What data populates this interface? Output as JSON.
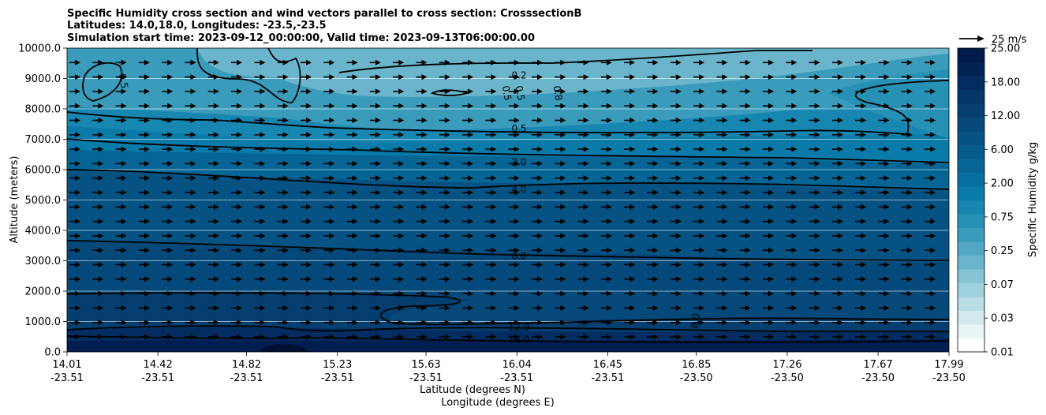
{
  "chart_data": {
    "type": "contour",
    "title_lines": [
      "Specific Humidity cross section and wind vectors parallel to cross section: CrosssectionB",
      "Latitudes: 14.0,18.0, Longitudes: -23.5,-23.5",
      "Simulation start time: 2023-09-12_00:00:00, Valid time: 2023-09-13T06:00:00.00"
    ],
    "ylabel": "Altitude (meters)",
    "xlabel_lat": "Latitude (degrees N)",
    "xlabel_lon": "Longitude (degrees E)",
    "ylim": [
      0,
      10000
    ],
    "y_ticks": [
      "0.0",
      "1000.0",
      "2000.0",
      "3000.0",
      "4000.0",
      "5000.0",
      "6000.0",
      "7000.0",
      "8000.0",
      "9000.0",
      "10000.0"
    ],
    "y_tick_values": [
      0,
      1000,
      2000,
      3000,
      4000,
      5000,
      6000,
      7000,
      8000,
      9000,
      10000
    ],
    "xlim": [
      14.01,
      17.99
    ],
    "x_ticks": [
      {
        "lat": "14.01",
        "lon": "-23.51",
        "value": 14.01
      },
      {
        "lat": "14.42",
        "lon": "-23.51",
        "value": 14.42
      },
      {
        "lat": "14.82",
        "lon": "-23.51",
        "value": 14.82
      },
      {
        "lat": "15.23",
        "lon": "-23.51",
        "value": 15.23
      },
      {
        "lat": "15.63",
        "lon": "-23.51",
        "value": 15.63
      },
      {
        "lat": "16.04",
        "lon": "-23.51",
        "value": 16.04
      },
      {
        "lat": "16.45",
        "lon": "-23.51",
        "value": 16.45
      },
      {
        "lat": "16.85",
        "lon": "-23.50",
        "value": 16.85
      },
      {
        "lat": "17.26",
        "lon": "-23.50",
        "value": 17.26
      },
      {
        "lat": "17.67",
        "lon": "-23.50",
        "value": 17.67
      },
      {
        "lat": "17.99",
        "lon": "-23.50",
        "value": 17.99
      }
    ],
    "colorbar": {
      "label": "Specific Humidity g/kg",
      "tick_labels": [
        "0.01",
        "0.03",
        "0.07",
        "0.25",
        "0.75",
        "2.00",
        "6.00",
        "12.00",
        "18.00",
        "25.00"
      ],
      "colors": [
        "#ffffff",
        "#e8f4f6",
        "#d2e9ee",
        "#b9dde6",
        "#9fd0de",
        "#85c3d5",
        "#6ab5cc",
        "#52a8c4",
        "#3a9bbb",
        "#2690b5",
        "#1786b0",
        "#0a7ba9",
        "#066fa0",
        "#066595",
        "#055b8b",
        "#055283",
        "#05497a",
        "#053f70",
        "#043667",
        "#042c5e",
        "#032355",
        "#021b4b"
      ]
    },
    "quiver_key": {
      "label": "25 m/s",
      "speed": 25
    },
    "wind_note": "uniform eastward vectors parallel to cross section",
    "contours": [
      {
        "level": "0.2",
        "label_at": [
          16.05,
          9100
        ]
      },
      {
        "level": "0.5",
        "label_at": [
          16.05,
          7350
        ]
      },
      {
        "level": "2.0",
        "label_at": [
          16.05,
          6250
        ]
      },
      {
        "level": "4.0",
        "label_at": [
          16.05,
          5350
        ]
      },
      {
        "level": "8.0",
        "label_at": [
          16.05,
          3150
        ]
      },
      {
        "level": "12.0",
        "label_at": [
          16.05,
          800
        ]
      },
      {
        "level": "16.0",
        "label_at": [
          16.05,
          400
        ]
      }
    ],
    "extra_contour_labels": [
      {
        "text": "0.5",
        "x": 14.25,
        "y": 8900
      },
      {
        "text": "0.5",
        "x": 15.98,
        "y": 8500
      },
      {
        "text": "0.5",
        "x": 16.04,
        "y": 8500
      },
      {
        "text": "0.8",
        "x": 16.21,
        "y": 8500
      },
      {
        "text": "8.0",
        "x": 16.86,
        "y": 1000
      }
    ]
  }
}
